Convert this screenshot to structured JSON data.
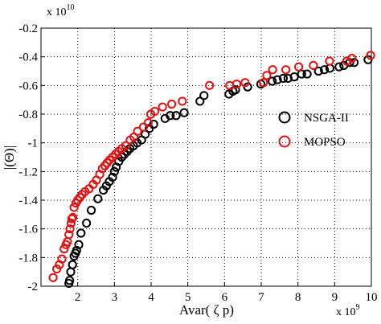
{
  "chart_data": {
    "type": "scatter",
    "xlabel": "Avar( ζ p)",
    "ylabel": "|(Θ)|",
    "x_multiplier_label": "x 10",
    "x_multiplier_exp": "9",
    "y_multiplier_label": "x 10",
    "y_multiplier_exp": "10",
    "xlim": [
      1,
      10
    ],
    "ylim": [
      -2,
      -0.2
    ],
    "x_ticks": [
      "2",
      "3",
      "4",
      "5",
      "6",
      "7",
      "8",
      "9",
      "10"
    ],
    "y_ticks": [
      "-2",
      "-1.8",
      "-1.6",
      "-1.4",
      "-1.2",
      "-1",
      "-0.8",
      "-0.6",
      "-0.4",
      "-0.2"
    ],
    "grid": true,
    "legend_position": "right",
    "series": [
      {
        "name": "NSGA-II",
        "color": "#000000",
        "points": [
          [
            1.76,
            -1.98
          ],
          [
            1.78,
            -1.96
          ],
          [
            1.81,
            -1.9
          ],
          [
            1.86,
            -1.85
          ],
          [
            1.9,
            -1.79
          ],
          [
            1.94,
            -1.77
          ],
          [
            1.97,
            -1.75
          ],
          [
            2.03,
            -1.71
          ],
          [
            2.09,
            -1.63
          ],
          [
            2.24,
            -1.56
          ],
          [
            2.37,
            -1.47
          ],
          [
            2.55,
            -1.39
          ],
          [
            2.7,
            -1.33
          ],
          [
            2.78,
            -1.3
          ],
          [
            2.86,
            -1.27
          ],
          [
            2.95,
            -1.24
          ],
          [
            3.0,
            -1.2
          ],
          [
            3.05,
            -1.17
          ],
          [
            3.12,
            -1.13
          ],
          [
            3.2,
            -1.1
          ],
          [
            3.27,
            -1.08
          ],
          [
            3.35,
            -1.06
          ],
          [
            3.42,
            -1.04
          ],
          [
            3.52,
            -1.02
          ],
          [
            3.62,
            -1.0
          ],
          [
            3.74,
            -0.98
          ],
          [
            3.84,
            -0.94
          ],
          [
            3.95,
            -0.9
          ],
          [
            4.07,
            -0.87
          ],
          [
            4.38,
            -0.83
          ],
          [
            4.52,
            -0.81
          ],
          [
            4.68,
            -0.81
          ],
          [
            4.9,
            -0.79
          ],
          [
            5.33,
            -0.71
          ],
          [
            5.44,
            -0.67
          ],
          [
            6.12,
            -0.66
          ],
          [
            6.23,
            -0.64
          ],
          [
            6.3,
            -0.63
          ],
          [
            6.63,
            -0.61
          ],
          [
            6.99,
            -0.59
          ],
          [
            7.3,
            -0.57
          ],
          [
            7.44,
            -0.56
          ],
          [
            7.6,
            -0.55
          ],
          [
            7.73,
            -0.55
          ],
          [
            7.9,
            -0.54
          ],
          [
            8.1,
            -0.52
          ],
          [
            8.25,
            -0.52
          ],
          [
            8.56,
            -0.5
          ],
          [
            8.72,
            -0.49
          ],
          [
            8.87,
            -0.48
          ],
          [
            9.12,
            -0.47
          ],
          [
            9.25,
            -0.46
          ],
          [
            9.41,
            -0.44
          ],
          [
            9.53,
            -0.44
          ],
          [
            9.91,
            -0.42
          ]
        ]
      },
      {
        "name": "MOPSO",
        "color": "#e01212",
        "points": [
          [
            1.33,
            -1.94
          ],
          [
            1.43,
            -1.88
          ],
          [
            1.5,
            -1.85
          ],
          [
            1.57,
            -1.81
          ],
          [
            1.63,
            -1.74
          ],
          [
            1.68,
            -1.71
          ],
          [
            1.72,
            -1.69
          ],
          [
            1.76,
            -1.64
          ],
          [
            1.79,
            -1.6
          ],
          [
            1.82,
            -1.56
          ],
          [
            1.84,
            -1.53
          ],
          [
            1.87,
            -1.52
          ],
          [
            1.9,
            -1.45
          ],
          [
            1.95,
            -1.42
          ],
          [
            2.0,
            -1.4
          ],
          [
            2.06,
            -1.38
          ],
          [
            2.12,
            -1.36
          ],
          [
            2.2,
            -1.34
          ],
          [
            2.31,
            -1.32
          ],
          [
            2.42,
            -1.29
          ],
          [
            2.51,
            -1.26
          ],
          [
            2.6,
            -1.22
          ],
          [
            2.67,
            -1.18
          ],
          [
            2.74,
            -1.16
          ],
          [
            2.8,
            -1.14
          ],
          [
            2.87,
            -1.12
          ],
          [
            2.95,
            -1.1
          ],
          [
            3.03,
            -1.08
          ],
          [
            3.11,
            -1.06
          ],
          [
            3.2,
            -1.04
          ],
          [
            3.31,
            -1.02
          ],
          [
            3.43,
            -0.98
          ],
          [
            3.53,
            -0.96
          ],
          [
            3.63,
            -0.92
          ],
          [
            3.79,
            -0.89
          ],
          [
            3.92,
            -0.86
          ],
          [
            3.99,
            -0.8
          ],
          [
            4.1,
            -0.78
          ],
          [
            4.31,
            -0.75
          ],
          [
            4.56,
            -0.73
          ],
          [
            4.85,
            -0.71
          ],
          [
            5.59,
            -0.6
          ],
          [
            6.14,
            -0.6
          ],
          [
            6.33,
            -0.59
          ],
          [
            6.56,
            -0.58
          ],
          [
            7.06,
            -0.58
          ],
          [
            7.15,
            -0.53
          ],
          [
            7.31,
            -0.49
          ],
          [
            7.67,
            -0.49
          ],
          [
            8.02,
            -0.47
          ],
          [
            8.42,
            -0.46
          ],
          [
            8.86,
            -0.43
          ],
          [
            9.33,
            -0.43
          ],
          [
            9.47,
            -0.41
          ],
          [
            9.98,
            -0.39
          ]
        ]
      }
    ]
  }
}
